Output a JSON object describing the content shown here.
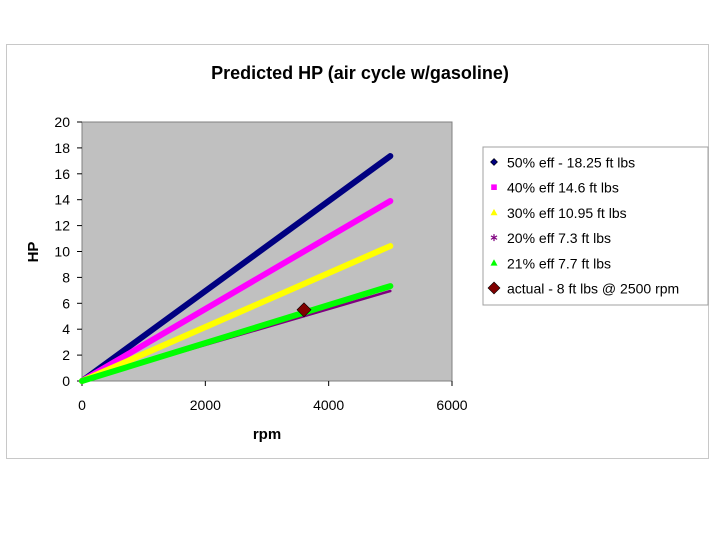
{
  "chart_data": {
    "type": "line",
    "title": "Predicted HP (air cycle w/gasoline)",
    "xlabel": "rpm",
    "ylabel": "HP",
    "xlim": [
      0,
      6000
    ],
    "ylim": [
      0,
      20
    ],
    "x_ticks": [
      0,
      2000,
      4000,
      6000
    ],
    "y_ticks": [
      0,
      2,
      4,
      6,
      8,
      10,
      12,
      14,
      16,
      18,
      20
    ],
    "grid": false,
    "plot_background": "#c0c0c0",
    "legend_position": "right",
    "series": [
      {
        "name": "50% eff - 18.25 ft lbs",
        "color": "#000080",
        "marker": "diamond",
        "x": [
          0,
          5000
        ],
        "y": [
          0,
          17.37
        ]
      },
      {
        "name": "40% eff 14.6 ft lbs",
        "color": "#ff00ff",
        "marker": "square",
        "x": [
          0,
          5000
        ],
        "y": [
          0,
          13.9
        ]
      },
      {
        "name": "30% eff 10.95 ft lbs",
        "color": "#ffff00",
        "marker": "triangle",
        "x": [
          0,
          5000
        ],
        "y": [
          0,
          10.42
        ]
      },
      {
        "name": "20% eff 7.3 ft lbs",
        "color": "#7f007f",
        "marker": "star",
        "x": [
          0,
          5000
        ],
        "y": [
          0,
          6.95
        ]
      },
      {
        "name": "21% eff 7.7 ft lbs",
        "color": "#00ff00",
        "marker": "triangle",
        "x": [
          0,
          5000
        ],
        "y": [
          0,
          7.33
        ]
      },
      {
        "name": "actual - 8 ft lbs @ 2500 rpm",
        "color": "#800000",
        "marker": "diamond",
        "x": [
          3600
        ],
        "y": [
          5.5
        ]
      }
    ]
  }
}
